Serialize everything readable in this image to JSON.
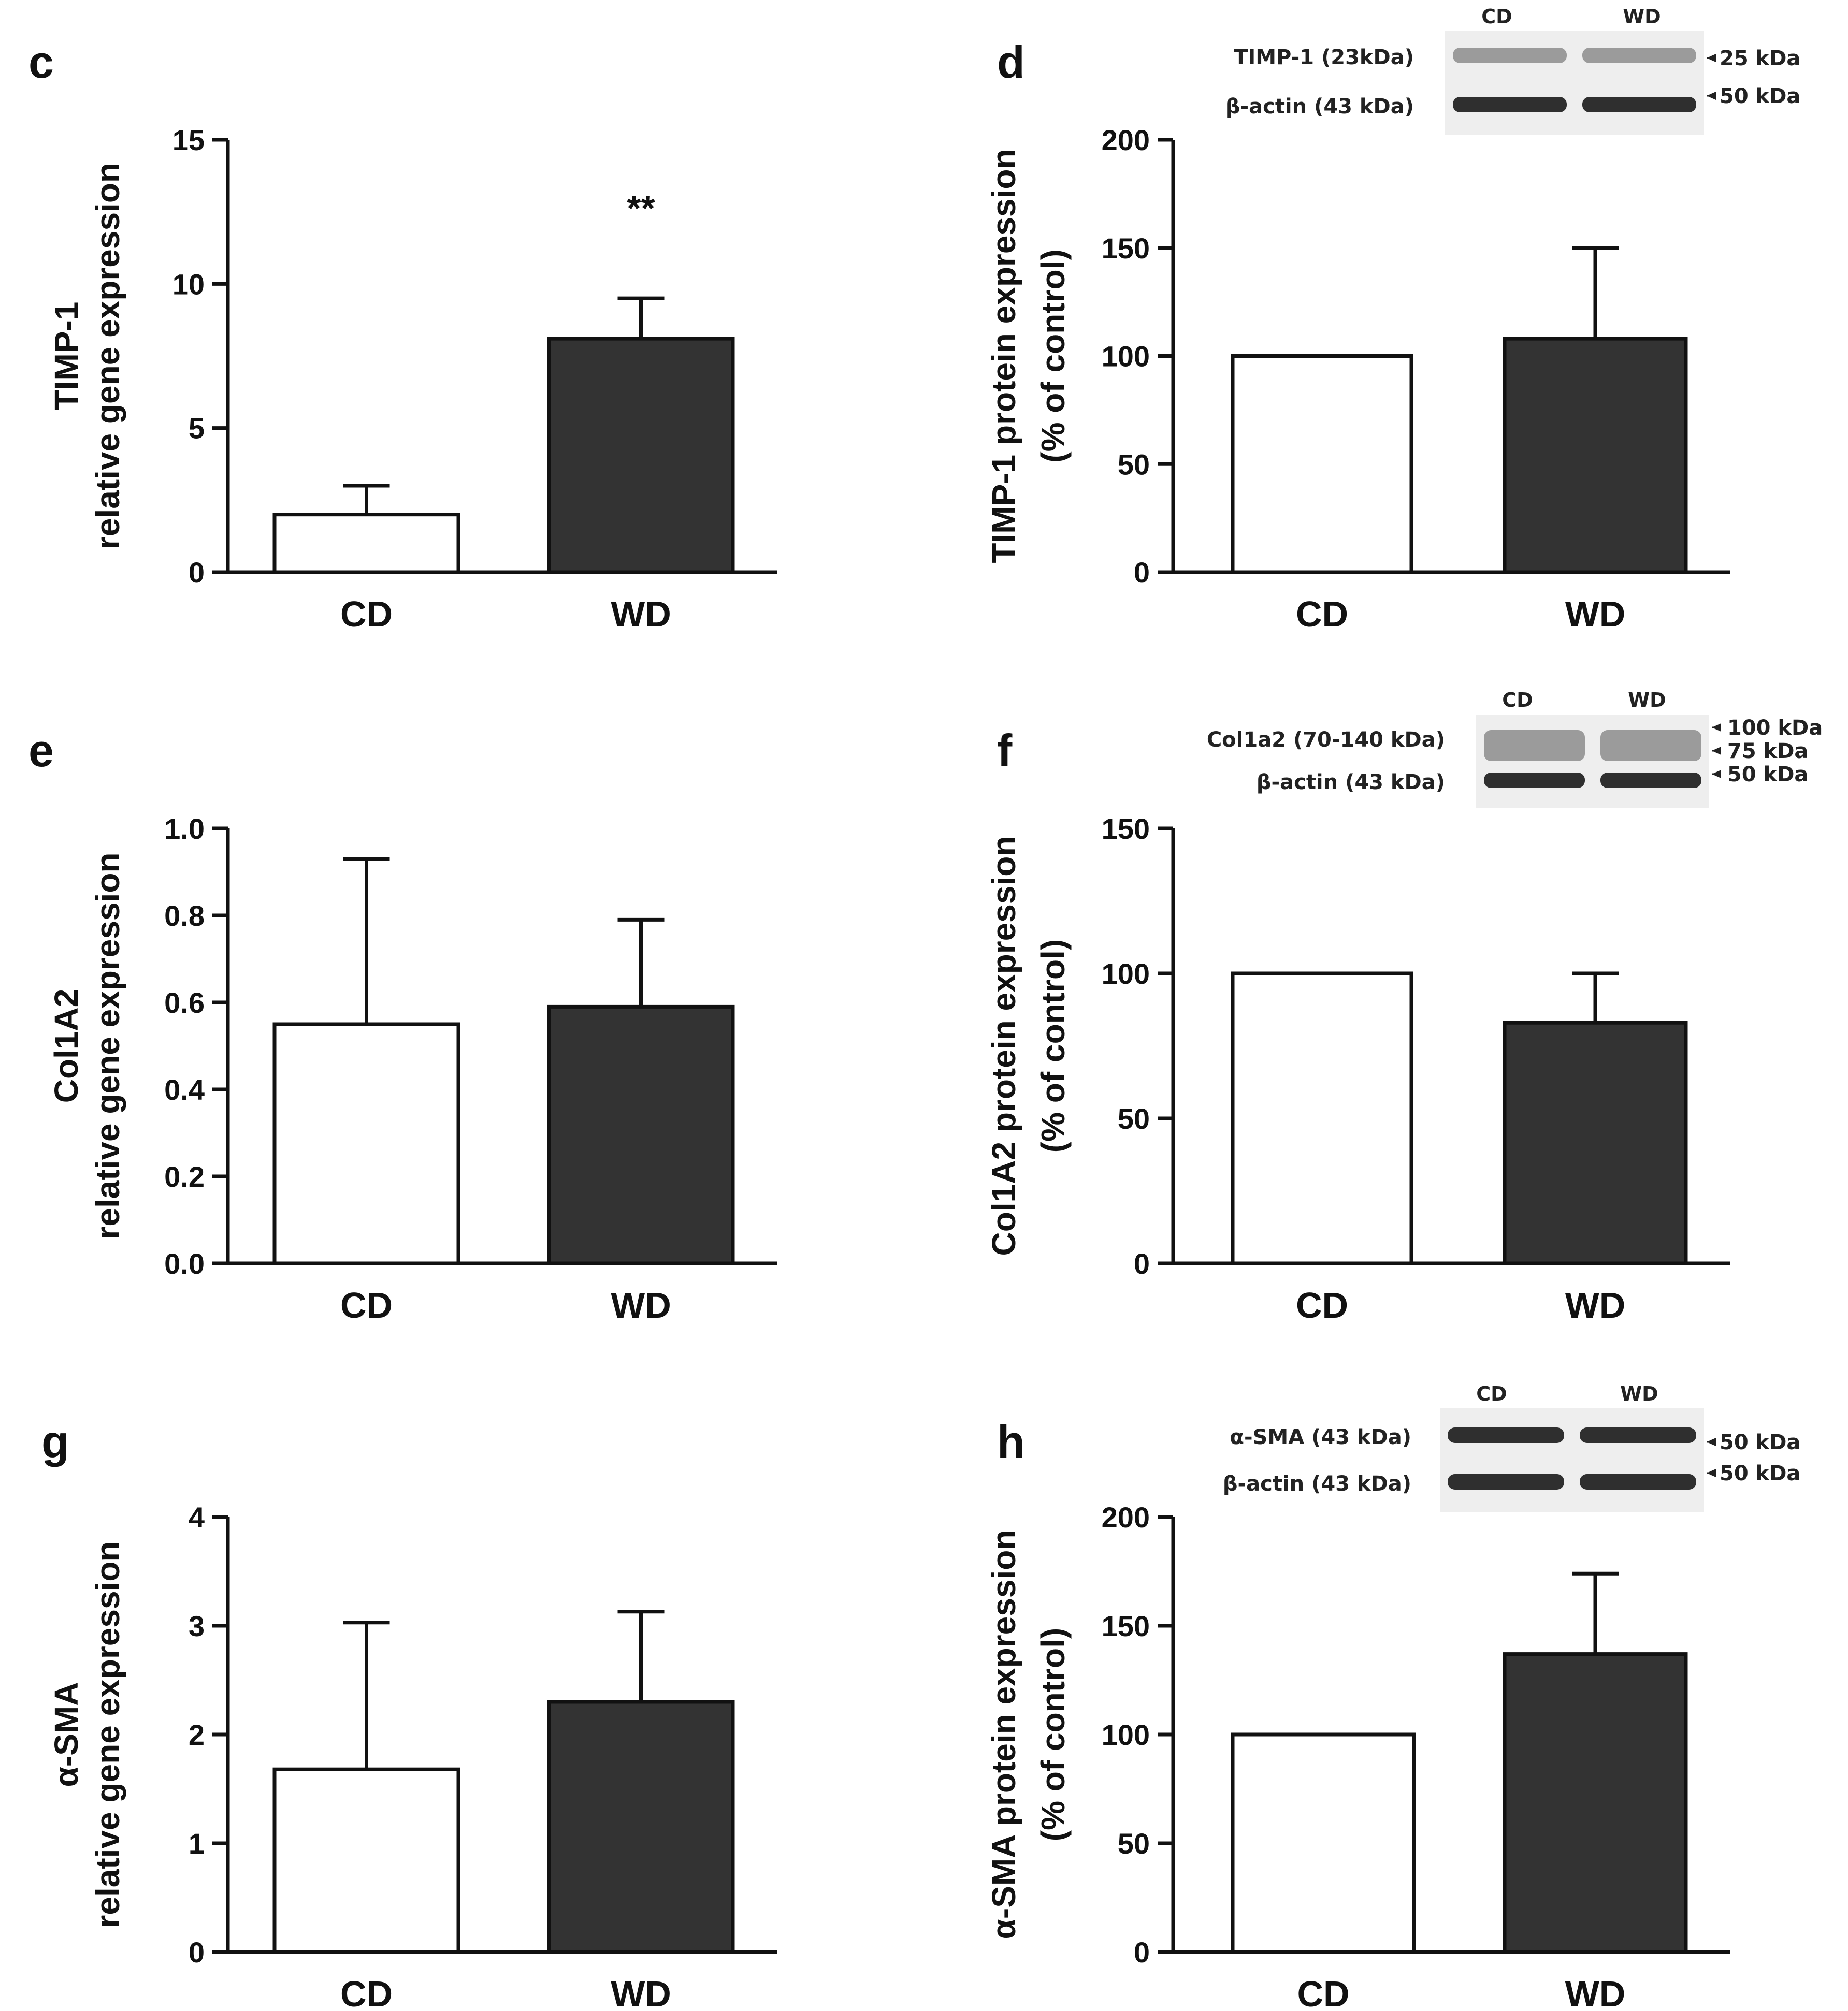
{
  "chart_data": [
    {
      "id": "c",
      "type": "bar",
      "panel_letter": "c",
      "categories": [
        "CD",
        "WD"
      ],
      "values": [
        2.0,
        8.1
      ],
      "errors": [
        1.0,
        1.4
      ],
      "significance": [
        "",
        "**"
      ],
      "ylim": [
        0,
        15
      ],
      "yticks": [
        0,
        5,
        10,
        15
      ],
      "yticklabels": [
        "0",
        "5",
        "10",
        "15"
      ],
      "ylabel_lines": [
        "TIMP-1",
        "relative gene expression"
      ],
      "blot": null
    },
    {
      "id": "d",
      "type": "bar",
      "panel_letter": "d",
      "categories": [
        "CD",
        "WD"
      ],
      "values": [
        100,
        108
      ],
      "errors": [
        0,
        42
      ],
      "significance": [
        "",
        ""
      ],
      "ylim": [
        0,
        200
      ],
      "yticks": [
        0,
        50,
        100,
        150,
        200
      ],
      "yticklabels": [
        "0",
        "50",
        "100",
        "150",
        "200"
      ],
      "ylabel_lines": [
        "TIMP-1 protein expression",
        "(% of control)"
      ],
      "blot": {
        "lanes": [
          "CD",
          "WD"
        ],
        "rows": [
          "TIMP-1 (23kDa)",
          "β-actin (43 kDa)"
        ],
        "markers": [
          "25 kDa",
          "50 kDa"
        ]
      }
    },
    {
      "id": "e",
      "type": "bar",
      "panel_letter": "e",
      "categories": [
        "CD",
        "WD"
      ],
      "values": [
        0.55,
        0.59
      ],
      "errors": [
        0.38,
        0.2
      ],
      "significance": [
        "",
        ""
      ],
      "ylim": [
        0,
        1.0
      ],
      "yticks": [
        0,
        0.2,
        0.4,
        0.6,
        0.8,
        1.0
      ],
      "yticklabels": [
        "0.0",
        "0.2",
        "0.4",
        "0.6",
        "0.8",
        "1.0"
      ],
      "ylabel_lines": [
        "Col1A2",
        "relative gene expression"
      ],
      "blot": null
    },
    {
      "id": "f",
      "type": "bar",
      "panel_letter": "f",
      "categories": [
        "CD",
        "WD"
      ],
      "values": [
        100,
        83
      ],
      "errors": [
        0,
        17
      ],
      "significance": [
        "",
        ""
      ],
      "ylim": [
        0,
        150
      ],
      "yticks": [
        0,
        50,
        100,
        150
      ],
      "yticklabels": [
        "0",
        "50",
        "100",
        "150"
      ],
      "ylabel_lines": [
        "Col1A2 protein expression",
        "(% of control)"
      ],
      "blot": {
        "lanes": [
          "CD",
          "WD"
        ],
        "rows": [
          "Col1a2 (70-140 kDa)",
          "β-actin (43 kDa)"
        ],
        "markers": [
          "100 kDa",
          "75 kDa",
          "50 kDa"
        ]
      }
    },
    {
      "id": "g",
      "type": "bar",
      "panel_letter": "g",
      "categories": [
        "CD",
        "WD"
      ],
      "values": [
        1.68,
        2.3
      ],
      "errors": [
        1.35,
        0.83
      ],
      "significance": [
        "",
        ""
      ],
      "ylim": [
        0,
        4
      ],
      "yticks": [
        0,
        1,
        2,
        3,
        4
      ],
      "yticklabels": [
        "0",
        "1",
        "2",
        "3",
        "4"
      ],
      "ylabel_lines": [
        "α-SMA",
        "relative gene expression"
      ],
      "blot": null
    },
    {
      "id": "h",
      "type": "bar",
      "panel_letter": "h",
      "categories": [
        "CD",
        "WD"
      ],
      "values": [
        100,
        137
      ],
      "errors": [
        0,
        37
      ],
      "significance": [
        "",
        ""
      ],
      "ylim": [
        0,
        200
      ],
      "yticks": [
        0,
        50,
        100,
        150,
        200
      ],
      "yticklabels": [
        "0",
        "50",
        "100",
        "150",
        "200"
      ],
      "ylabel_lines": [
        "α-SMA protein expression",
        "(% of control)"
      ],
      "blot": {
        "lanes": [
          "CD",
          "WD"
        ],
        "rows": [
          "α-SMA (43 kDa)",
          "β-actin (43 kDa)"
        ],
        "markers": [
          "50 kDa",
          "50 kDa"
        ]
      }
    }
  ]
}
